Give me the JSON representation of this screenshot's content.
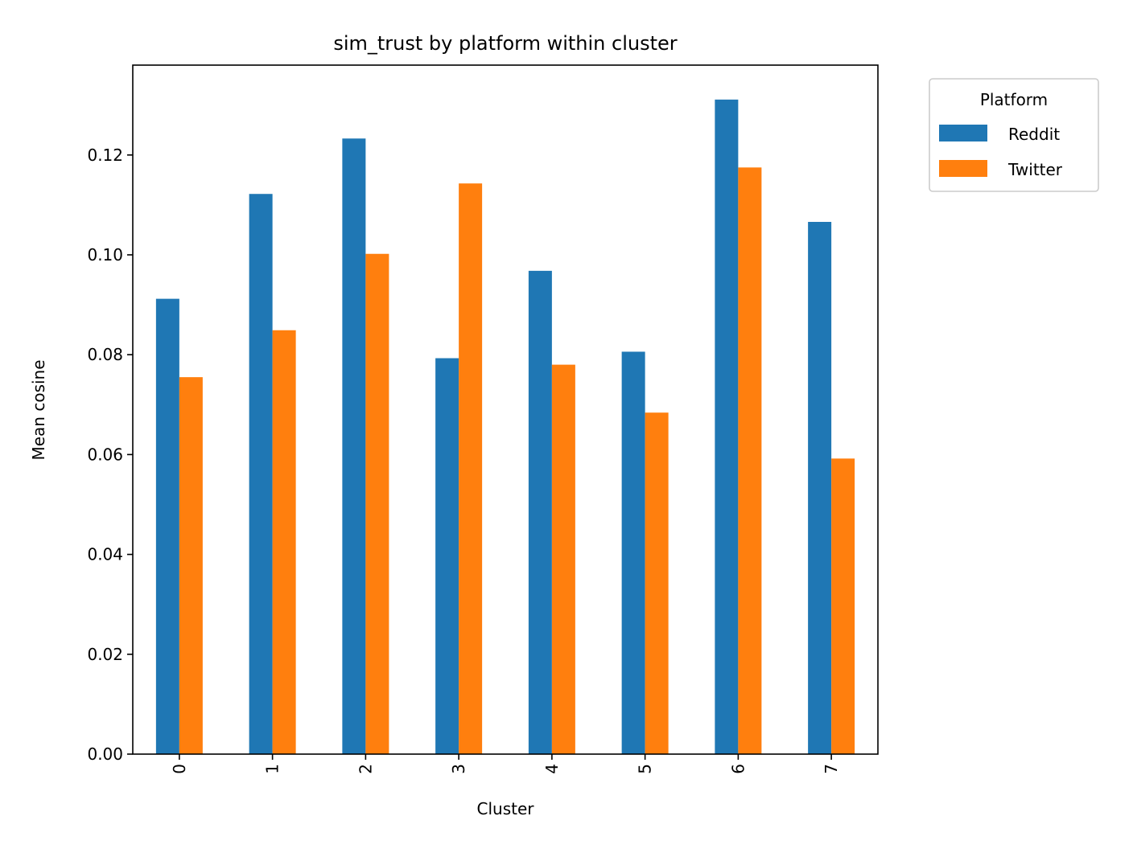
{
  "chart_data": {
    "type": "bar",
    "title": "sim_trust by platform within cluster",
    "xlabel": "Cluster",
    "ylabel": "Mean cosine",
    "categories": [
      "0",
      "1",
      "2",
      "3",
      "4",
      "5",
      "6",
      "7"
    ],
    "series": [
      {
        "name": "Reddit",
        "color": "#1f77b4",
        "values": [
          0.0912,
          0.1122,
          0.1233,
          0.0793,
          0.0968,
          0.0806,
          0.1311,
          0.1066
        ]
      },
      {
        "name": "Twitter",
        "color": "#ff7f0e",
        "values": [
          0.0755,
          0.0849,
          0.1002,
          0.1143,
          0.078,
          0.0684,
          0.1175,
          0.0592
        ]
      }
    ],
    "ylim": [
      0,
      0.138
    ],
    "yticks": [
      "0.00",
      "0.02",
      "0.04",
      "0.06",
      "0.08",
      "0.10",
      "0.12"
    ],
    "legend": {
      "title": "Platform",
      "placement": "outside-top-right"
    },
    "grid": false
  }
}
